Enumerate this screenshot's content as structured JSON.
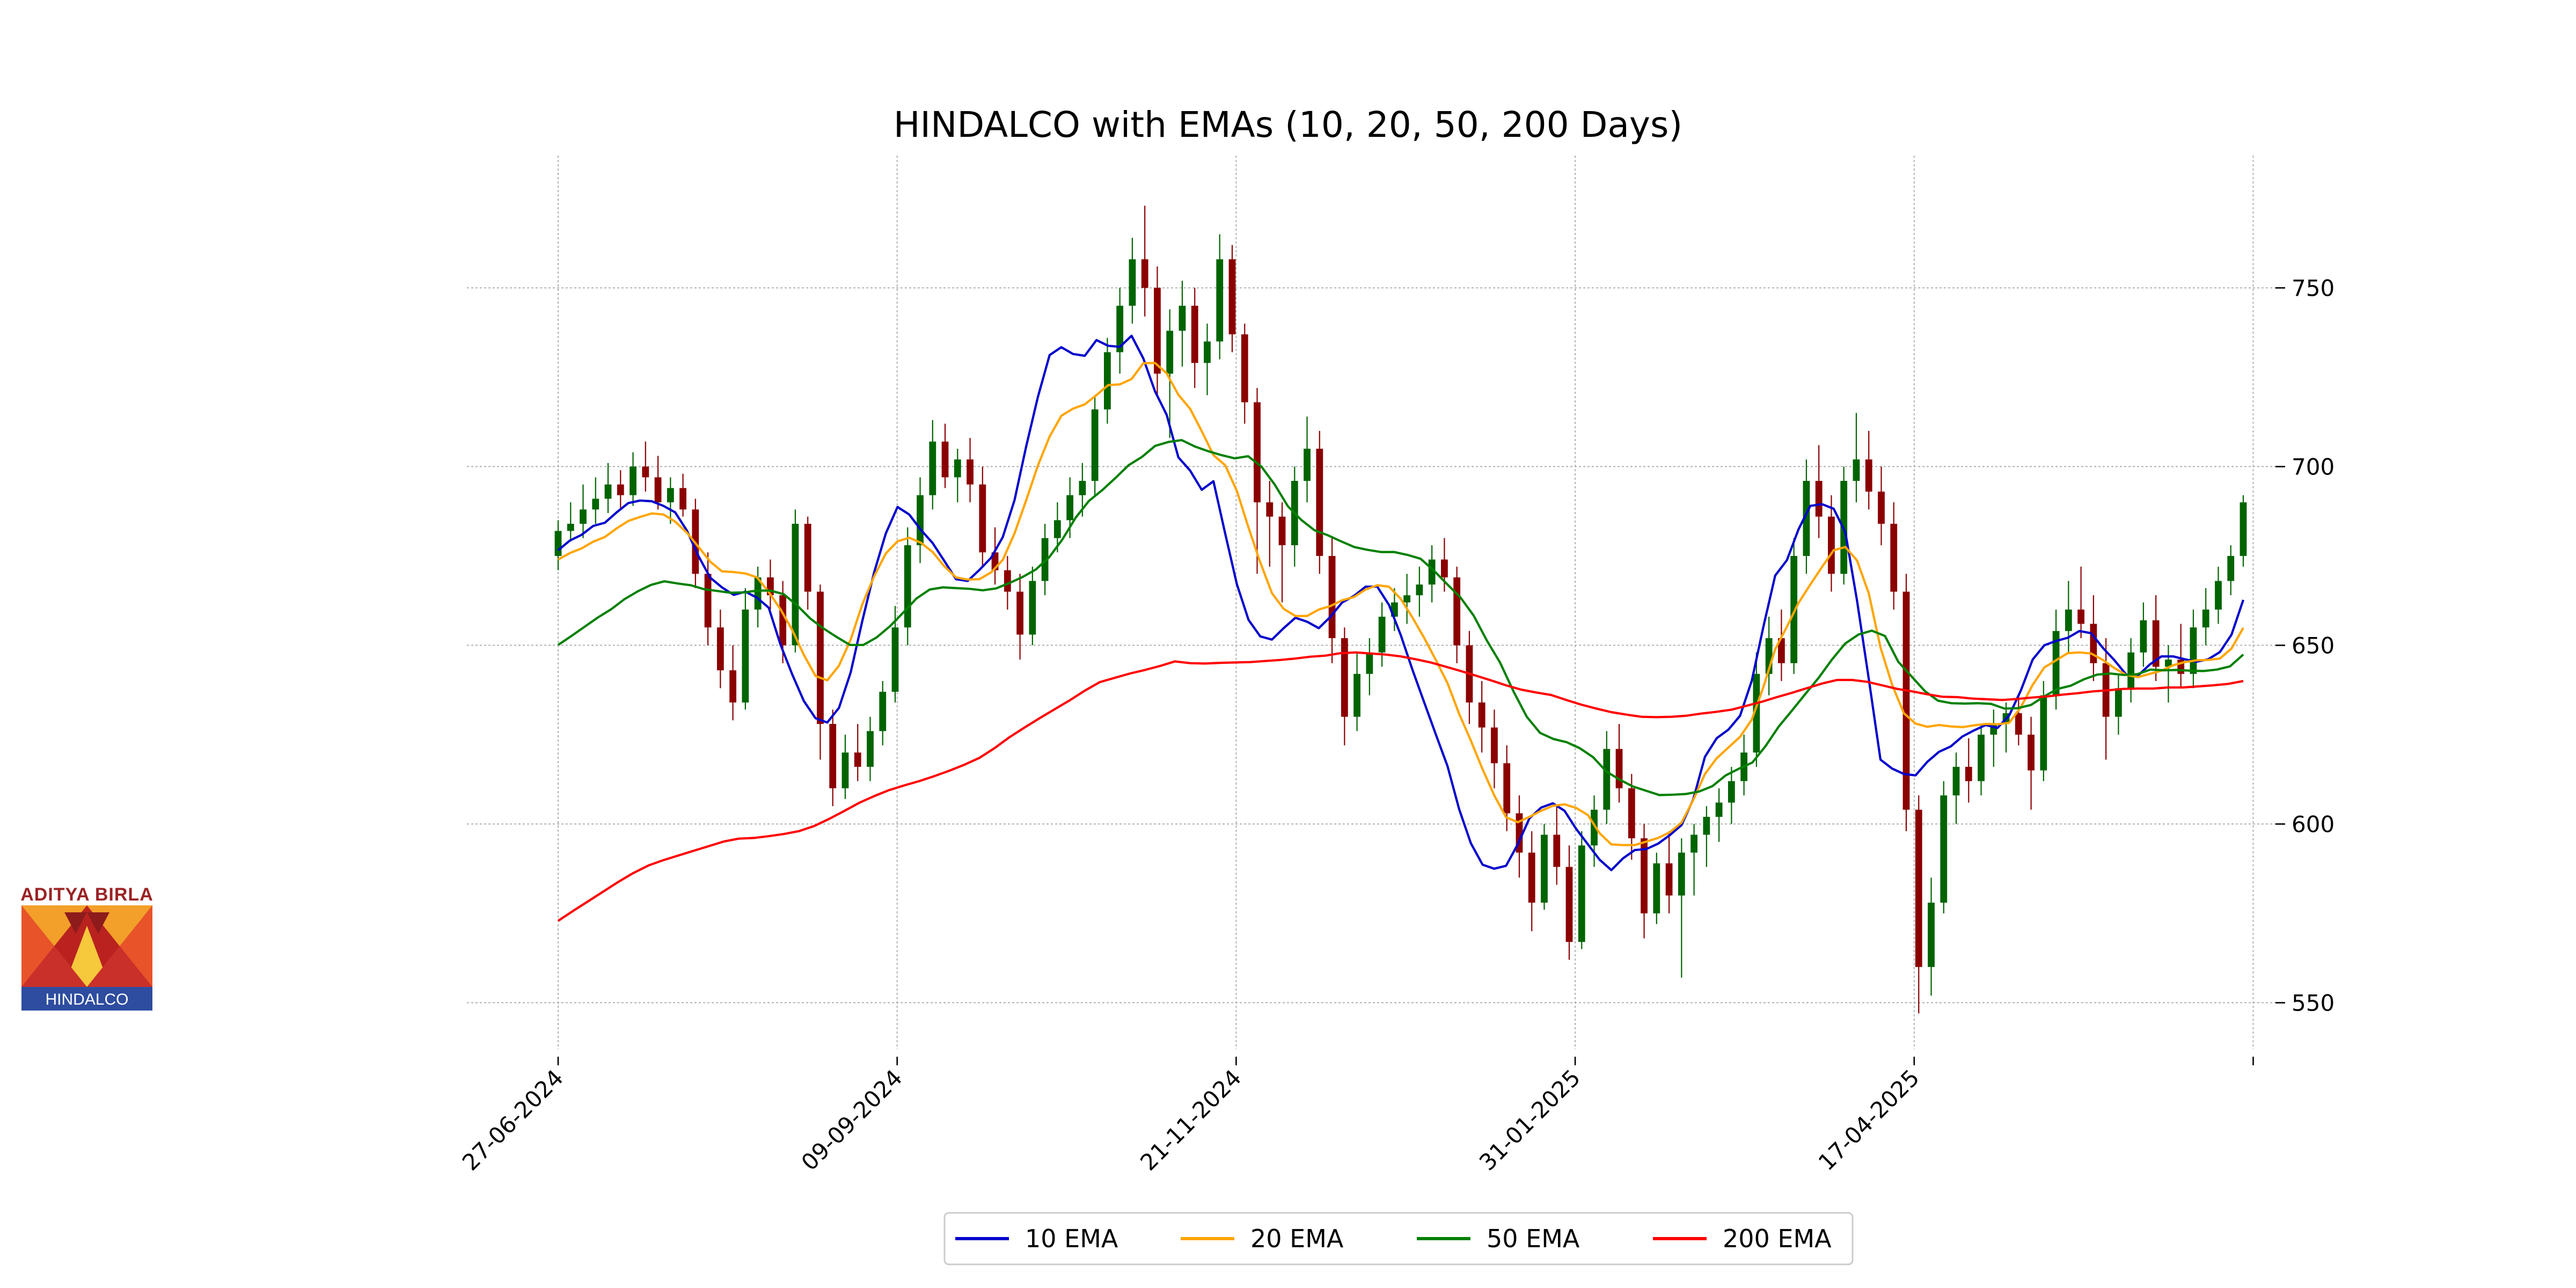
{
  "logo": {
    "top_text": "ADITYA BIRLA",
    "bottom_text": "HINDALCO"
  },
  "chart_data": {
    "type": "candlestick",
    "title": "HINDALCO with EMAs (10, 20, 50, 200 Days)",
    "xlabel": "",
    "ylabel": "",
    "ylim": [
      537,
      787
    ],
    "y_ticks": [
      550,
      600,
      650,
      700,
      750
    ],
    "x_tick_labels": [
      "27-06-2024",
      "09-09-2024",
      "21-11-2024",
      "31-01-2025",
      "17-04-2025",
      ""
    ],
    "grid": true,
    "legend_position": "bottom-center",
    "candle_colors": {
      "up": "#006400",
      "down": "#8b0000"
    },
    "ohlc": [
      [
        675,
        685,
        671,
        682
      ],
      [
        682,
        690,
        679,
        684
      ],
      [
        684,
        695,
        680,
        688
      ],
      [
        688,
        697,
        684,
        691
      ],
      [
        691,
        701,
        687,
        695
      ],
      [
        695,
        699,
        688,
        692
      ],
      [
        692,
        704,
        689,
        700
      ],
      [
        700,
        707,
        693,
        697
      ],
      [
        697,
        703,
        688,
        690
      ],
      [
        690,
        697,
        684,
        694
      ],
      [
        694,
        698,
        686,
        688
      ],
      [
        688,
        691,
        666,
        670
      ],
      [
        670,
        676,
        650,
        655
      ],
      [
        655,
        660,
        638,
        643
      ],
      [
        643,
        650,
        629,
        634
      ],
      [
        634,
        666,
        632,
        660
      ],
      [
        660,
        672,
        655,
        669
      ],
      [
        669,
        674,
        660,
        664
      ],
      [
        664,
        668,
        645,
        650
      ],
      [
        650,
        688,
        648,
        684
      ],
      [
        684,
        686,
        660,
        665
      ],
      [
        665,
        667,
        618,
        628
      ],
      [
        628,
        632,
        605,
        610
      ],
      [
        610,
        625,
        607,
        620
      ],
      [
        620,
        628,
        612,
        616
      ],
      [
        616,
        630,
        612,
        626
      ],
      [
        626,
        640,
        622,
        637
      ],
      [
        637,
        661,
        634,
        655
      ],
      [
        655,
        683,
        650,
        678
      ],
      [
        678,
        697,
        673,
        692
      ],
      [
        692,
        713,
        688,
        707
      ],
      [
        707,
        712,
        694,
        697
      ],
      [
        697,
        705,
        690,
        702
      ],
      [
        702,
        708,
        690,
        695
      ],
      [
        695,
        700,
        672,
        676
      ],
      [
        676,
        683,
        667,
        671
      ],
      [
        671,
        675,
        660,
        665
      ],
      [
        665,
        670,
        646,
        653
      ],
      [
        653,
        672,
        650,
        668
      ],
      [
        668,
        684,
        664,
        680
      ],
      [
        680,
        690,
        676,
        685
      ],
      [
        685,
        697,
        680,
        692
      ],
      [
        692,
        701,
        686,
        696
      ],
      [
        696,
        720,
        692,
        716
      ],
      [
        716,
        736,
        712,
        732
      ],
      [
        732,
        750,
        726,
        745
      ],
      [
        745,
        764,
        740,
        758
      ],
      [
        758,
        773,
        742,
        750
      ],
      [
        750,
        756,
        720,
        726
      ],
      [
        726,
        744,
        708,
        738
      ],
      [
        738,
        752,
        728,
        745
      ],
      [
        745,
        750,
        722,
        729
      ],
      [
        729,
        740,
        720,
        735
      ],
      [
        735,
        765,
        730,
        758
      ],
      [
        758,
        762,
        732,
        737
      ],
      [
        737,
        740,
        712,
        718
      ],
      [
        718,
        722,
        670,
        690
      ],
      [
        690,
        696,
        672,
        686
      ],
      [
        686,
        690,
        662,
        678
      ],
      [
        678,
        700,
        672,
        696
      ],
      [
        696,
        714,
        690,
        705
      ],
      [
        705,
        710,
        670,
        675
      ],
      [
        675,
        680,
        645,
        652
      ],
      [
        652,
        655,
        622,
        630
      ],
      [
        630,
        648,
        626,
        642
      ],
      [
        642,
        652,
        636,
        648
      ],
      [
        648,
        662,
        644,
        658
      ],
      [
        658,
        666,
        654,
        662
      ],
      [
        662,
        670,
        656,
        664
      ],
      [
        664,
        672,
        658,
        667
      ],
      [
        667,
        678,
        662,
        674
      ],
      [
        674,
        680,
        665,
        669
      ],
      [
        669,
        672,
        645,
        650
      ],
      [
        650,
        654,
        628,
        634
      ],
      [
        634,
        640,
        620,
        627
      ],
      [
        627,
        632,
        610,
        617
      ],
      [
        617,
        622,
        598,
        603
      ],
      [
        603,
        608,
        585,
        592
      ],
      [
        592,
        598,
        570,
        578
      ],
      [
        578,
        600,
        576,
        597
      ],
      [
        597,
        605,
        583,
        588
      ],
      [
        588,
        594,
        562,
        567
      ],
      [
        567,
        598,
        565,
        594
      ],
      [
        594,
        608,
        588,
        604
      ],
      [
        604,
        626,
        600,
        621
      ],
      [
        621,
        628,
        606,
        610
      ],
      [
        610,
        614,
        590,
        596
      ],
      [
        596,
        600,
        568,
        575
      ],
      [
        575,
        592,
        572,
        589
      ],
      [
        589,
        598,
        575,
        580
      ],
      [
        580,
        596,
        557,
        592
      ],
      [
        592,
        600,
        580,
        597
      ],
      [
        597,
        605,
        588,
        602
      ],
      [
        602,
        610,
        595,
        606
      ],
      [
        606,
        616,
        600,
        612
      ],
      [
        612,
        625,
        608,
        620
      ],
      [
        620,
        648,
        616,
        642
      ],
      [
        642,
        658,
        636,
        652
      ],
      [
        652,
        660,
        640,
        645
      ],
      [
        645,
        680,
        642,
        675
      ],
      [
        675,
        702,
        670,
        696
      ],
      [
        696,
        706,
        680,
        686
      ],
      [
        686,
        692,
        665,
        670
      ],
      [
        670,
        700,
        667,
        696
      ],
      [
        696,
        715,
        690,
        702
      ],
      [
        702,
        710,
        688,
        693
      ],
      [
        693,
        700,
        678,
        684
      ],
      [
        684,
        690,
        660,
        665
      ],
      [
        665,
        670,
        598,
        604
      ],
      [
        604,
        608,
        547,
        560
      ],
      [
        560,
        585,
        552,
        578
      ],
      [
        578,
        612,
        575,
        608
      ],
      [
        608,
        620,
        600,
        616
      ],
      [
        616,
        624,
        606,
        612
      ],
      [
        612,
        628,
        608,
        625
      ],
      [
        625,
        632,
        616,
        628
      ],
      [
        628,
        634,
        620,
        631
      ],
      [
        631,
        636,
        622,
        625
      ],
      [
        625,
        630,
        604,
        615
      ],
      [
        615,
        640,
        612,
        636
      ],
      [
        636,
        660,
        632,
        654
      ],
      [
        654,
        668,
        648,
        660
      ],
      [
        660,
        672,
        652,
        656
      ],
      [
        656,
        664,
        640,
        645
      ],
      [
        645,
        652,
        618,
        630
      ],
      [
        630,
        642,
        625,
        638
      ],
      [
        638,
        652,
        634,
        648
      ],
      [
        648,
        662,
        644,
        657
      ],
      [
        657,
        664,
        640,
        644
      ],
      [
        644,
        650,
        634,
        646
      ],
      [
        646,
        656,
        638,
        642
      ],
      [
        642,
        660,
        638,
        655
      ],
      [
        655,
        666,
        650,
        660
      ],
      [
        660,
        672,
        656,
        668
      ],
      [
        668,
        678,
        664,
        675
      ],
      [
        675,
        692,
        672,
        690
      ]
    ],
    "series": [
      {
        "name": "10 EMA",
        "color": "#0000cd",
        "values": [
          676.6,
          679.3,
          680.9,
          683.4,
          684.3,
          687.2,
          689.8,
          690.5,
          690.3,
          689.0,
          687.2,
          682.1,
          674.9,
          668.9,
          666.2,
          664.1,
          665.0,
          663.3,
          660.5,
          650.2,
          641.9,
          634.4,
          629.6,
          628.4,
          632.5,
          642.4,
          656.9,
          670.4,
          681.3,
          688.7,
          686.6,
          682.3,
          678.6,
          673.6,
          668.5,
          668.0,
          671.1,
          674.5,
          680.3,
          690.6,
          705.7,
          719.5,
          731.2,
          733.4,
          731.5,
          731.0,
          735.4,
          733.8,
          733.5,
          736.6,
          730.3,
          721.1,
          714.5,
          702.6,
          698.9,
          693.5,
          695.9,
          681.3,
          667.1,
          657.1,
          652.5,
          651.6,
          654.8,
          657.7,
          656.6,
          654.8,
          658.0,
          662.0,
          663.8,
          666.4,
          666.4,
          661.3,
          652.9,
          643.2,
          634.1,
          625.1,
          616.2,
          604.1,
          594.6,
          588.6,
          587.5,
          588.3,
          594.3,
          601.6,
          604.6,
          605.8,
          603.7,
          598.6,
          594.3,
          590.0,
          587.1,
          590.4,
          592.7,
          593.0,
          594.5,
          596.9,
          599.7,
          606.9,
          618.8,
          624.0,
          626.4,
          630.3,
          640.1,
          655.3,
          669.5,
          673.8,
          682.5,
          689.0,
          689.5,
          688.2,
          681.6,
          662.4,
          640.6,
          618.0,
          615.5,
          614.0,
          613.6,
          617.4,
          620.2,
          621.7,
          624.5,
          626.2,
          627.7,
          626.9,
          630.4,
          637.4,
          646.0,
          650.0,
          651.2,
          652.1,
          654.0,
          653.4,
          649.3,
          645.8,
          641.8,
          641.5,
          644.6,
          646.9,
          646.9,
          646.1,
          645.4,
          646.1,
          648.1,
          653.0,
          662.7
        ]
      },
      {
        "name": "20 EMA",
        "color": "#ffa500",
        "values": [
          674.0,
          675.8,
          677.1,
          679.0,
          680.3,
          682.7,
          684.8,
          685.9,
          686.9,
          686.6,
          684.6,
          681.5,
          677.5,
          673.4,
          670.7,
          670.5,
          670.1,
          669.0,
          664.9,
          660.1,
          654.3,
          647.3,
          641.4,
          640.2,
          644.3,
          651.6,
          661.5,
          669.3,
          675.7,
          679.1,
          680.1,
          678.7,
          676.1,
          672.1,
          669.0,
          668.4,
          668.5,
          670.4,
          673.9,
          681.3,
          690.6,
          700.3,
          708.4,
          714.2,
          716.2,
          717.4,
          720.0,
          722.8,
          723.0,
          724.5,
          728.9,
          729.0,
          726.1,
          720.1,
          716.2,
          709.9,
          703.2,
          700.4,
          693.2,
          682.9,
          673.2,
          664.6,
          660.2,
          658.2,
          658.2,
          660.0,
          661.0,
          662.6,
          663.5,
          665.6,
          666.8,
          666.4,
          663.0,
          657.8,
          652.1,
          645.9,
          639.4,
          630.8,
          623.3,
          615.3,
          608.0,
          601.9,
          600.5,
          602.0,
          603.7,
          605.1,
          605.5,
          604.5,
          602.5,
          597.4,
          594.3,
          594.1,
          594.1,
          595.1,
          596.1,
          597.7,
          600.4,
          606.7,
          614.0,
          618.4,
          621.4,
          624.4,
          629.2,
          638.4,
          648.9,
          655.2,
          661.9,
          667.0,
          671.9,
          676.6,
          677.5,
          673.7,
          664.5,
          649.4,
          638.9,
          631.0,
          628.1,
          627.2,
          627.7,
          627.3,
          627.1,
          627.6,
          628.0,
          627.9,
          628.3,
          632.7,
          638.9,
          643.8,
          645.8,
          647.8,
          648.0,
          647.7,
          645.9,
          643.6,
          641.7,
          641.1,
          642.0,
          642.9,
          644.4,
          645.3,
          645.8,
          645.9,
          646.3,
          649.1,
          654.9
        ]
      },
      {
        "name": "50 EMA",
        "color": "#008000",
        "values": [
          650.1,
          652.6,
          655.2,
          657.8,
          660.1,
          662.9,
          665.1,
          666.9,
          667.9,
          667.3,
          666.8,
          665.7,
          665.2,
          664.7,
          664.8,
          665.3,
          665.3,
          664.3,
          661.2,
          657.5,
          654.7,
          652.3,
          650.1,
          650.1,
          652.2,
          655.3,
          659.1,
          663.1,
          665.6,
          666.2,
          666.0,
          665.8,
          665.4,
          665.9,
          667.4,
          669.1,
          671.2,
          674.6,
          679.6,
          685.7,
          690.4,
          693.4,
          696.8,
          700.4,
          702.7,
          705.8,
          706.9,
          707.4,
          705.6,
          704.3,
          703.2,
          702.3,
          702.9,
          700.0,
          695.0,
          688.9,
          685.1,
          682.2,
          680.8,
          679.1,
          677.5,
          676.7,
          676.1,
          676.1,
          675.3,
          674.2,
          670.9,
          667.1,
          663.4,
          658.3,
          651.3,
          645.1,
          637.1,
          630.0,
          625.5,
          623.8,
          622.9,
          621.2,
          618.7,
          614.7,
          612.4,
          610.5,
          609.3,
          608.1,
          608.2,
          608.4,
          609.1,
          610.6,
          613.6,
          615.5,
          617.2,
          621.8,
          627.3,
          631.8,
          636.4,
          640.9,
          646.0,
          650.5,
          653.0,
          654.1,
          652.6,
          645.4,
          641.3,
          637.2,
          634.5,
          633.8,
          633.7,
          633.8,
          633.6,
          632.3,
          632.4,
          633.3,
          635.7,
          637.8,
          638.7,
          640.5,
          641.8,
          642.1,
          641.7,
          641.9,
          643.2,
          643.0,
          643.1,
          642.9,
          642.8,
          643.2,
          644.1,
          647.4
        ]
      },
      {
        "name": "200 EMA",
        "color": "#ff0000",
        "values": [
          572.9,
          575.7,
          578.4,
          581.1,
          583.8,
          586.3,
          588.4,
          589.9,
          591.2,
          592.5,
          593.8,
          595.1,
          595.9,
          596.1,
          596.6,
          597.2,
          598.0,
          599.4,
          601.4,
          603.6,
          605.9,
          607.8,
          609.5,
          610.8,
          612.0,
          613.4,
          614.9,
          616.6,
          618.5,
          621.2,
          624.3,
          627.0,
          629.6,
          632.1,
          634.6,
          637.3,
          639.7,
          640.9,
          642.1,
          643.1,
          644.2,
          645.5,
          645.0,
          644.9,
          645.1,
          645.2,
          645.3,
          645.6,
          645.9,
          646.3,
          646.8,
          647.1,
          647.8,
          648.0,
          647.7,
          647.4,
          646.9,
          646.1,
          645.2,
          644.0,
          642.8,
          641.5,
          640.2,
          638.8,
          637.6,
          636.8,
          636.1,
          634.7,
          633.4,
          632.3,
          631.3,
          630.6,
          630.0,
          629.9,
          630.0,
          630.3,
          630.9,
          631.4,
          632.0,
          633.1,
          634.2,
          635.5,
          636.7,
          638.0,
          639.3,
          640.3,
          640.3,
          639.8,
          638.8,
          637.8,
          637.1,
          636.3,
          635.6,
          635.5,
          635.1,
          634.9,
          634.7,
          635.0,
          635.4,
          635.7,
          636.2,
          636.6,
          637.1,
          637.4,
          637.8,
          637.9,
          637.9,
          638.2,
          638.2,
          638.5,
          638.8,
          639.2,
          640.0
        ]
      }
    ]
  }
}
